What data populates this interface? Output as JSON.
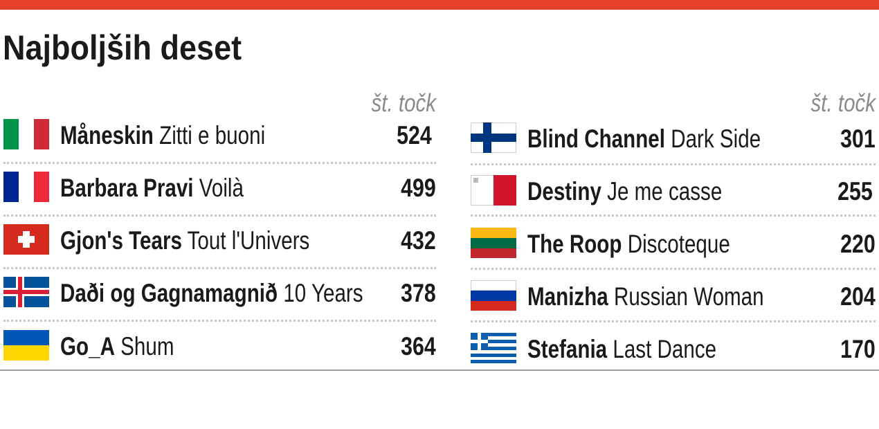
{
  "header": {
    "title": "Najboljših deset"
  },
  "columns": [
    {
      "points_label": "št. točk",
      "rows": [
        {
          "artist": "Måneskin",
          "song": "Zitti e buoni",
          "points": 524
        },
        {
          "artist": "Barbara Pravi",
          "song": "Voilà",
          "points": 499
        },
        {
          "artist": "Gjon's Tears",
          "song": "Tout l'Univers",
          "points": 432
        },
        {
          "artist": "Daði og Gagnamagnið",
          "song": "10 Years",
          "points": 378
        },
        {
          "artist": "Go_A",
          "song": "Shum",
          "points": 364
        }
      ]
    },
    {
      "points_label": "št. točk",
      "rows": [
        {
          "artist": "Blind Channel",
          "song": "Dark Side",
          "points": 301
        },
        {
          "artist": "Destiny",
          "song": "Je me casse",
          "points": 255
        },
        {
          "artist": "The Roop",
          "song": "Discoteque",
          "points": 220
        },
        {
          "artist": "Manizha",
          "song": "Russian Woman",
          "points": 204
        },
        {
          "artist": "Stefania",
          "song": "Last Dance",
          "points": 170
        }
      ]
    }
  ]
}
